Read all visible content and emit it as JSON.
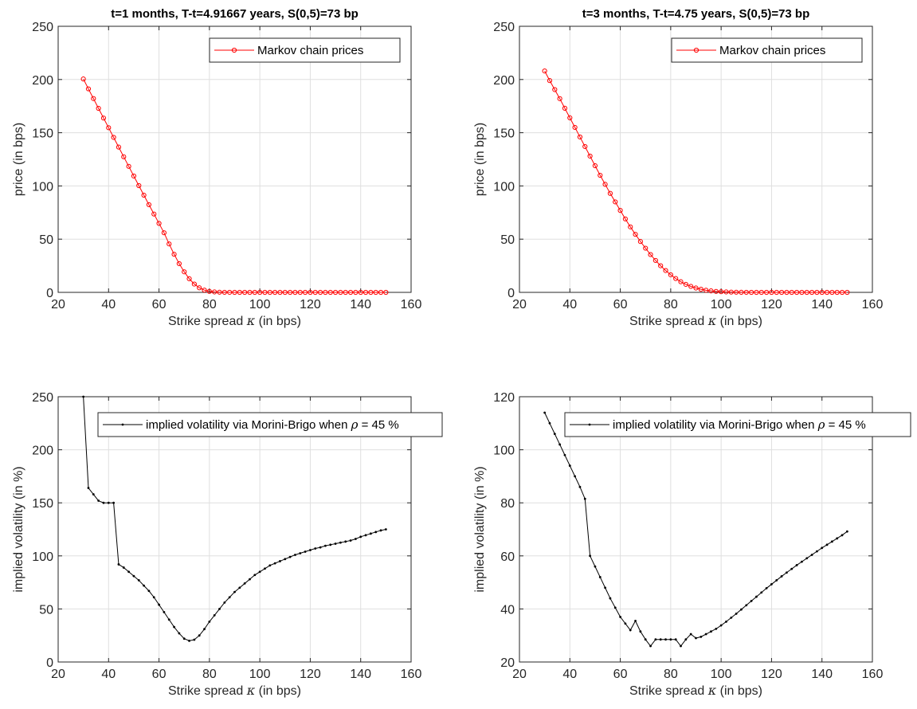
{
  "chart_data": [
    {
      "type": "line",
      "title": "t=1 months, T-t=4.91667 years, S(0,5)=73 bp",
      "xlabel": "Strike spread κ (in bps)",
      "ylabel": "price (in bps)",
      "xlim": [
        20,
        160
      ],
      "ylim": [
        0,
        250
      ],
      "xticks": [
        20,
        40,
        60,
        80,
        100,
        120,
        140,
        160
      ],
      "yticks": [
        0,
        50,
        100,
        150,
        200,
        250
      ],
      "grid": true,
      "legend_position": "top-right",
      "series": [
        {
          "name": "Markov chain prices",
          "color": "#ff0000",
          "marker": "circle",
          "x": [
            30,
            32,
            34,
            36,
            38,
            40,
            42,
            44,
            46,
            48,
            50,
            52,
            54,
            56,
            58,
            60,
            62,
            64,
            66,
            68,
            70,
            72,
            74,
            76,
            78,
            80,
            82,
            84,
            86,
            88,
            90,
            92,
            94,
            96,
            98,
            100,
            102,
            104,
            106,
            108,
            110,
            112,
            114,
            116,
            118,
            120,
            122,
            124,
            126,
            128,
            130,
            132,
            134,
            136,
            138,
            140,
            142,
            144,
            146,
            148,
            150
          ],
          "y": [
            200.5,
            191.2,
            182.1,
            172.9,
            163.8,
            154.7,
            145.6,
            136.5,
            127.4,
            118.4,
            109.3,
            100.3,
            91.3,
            82.4,
            73.6,
            64.8,
            56.0,
            45.5,
            35.8,
            27.0,
            19.3,
            12.8,
            7.8,
            4.3,
            2.1,
            0.9,
            0.4,
            0.15,
            0.05,
            0.02,
            0,
            0,
            0,
            0,
            0,
            0,
            0,
            0,
            0,
            0,
            0,
            0,
            0,
            0,
            0,
            0,
            0,
            0,
            0,
            0,
            0,
            0,
            0,
            0,
            0,
            0,
            0,
            0,
            0,
            0,
            0
          ]
        }
      ]
    },
    {
      "type": "line",
      "title": "t=3 months, T-t=4.75 years, S(0,5)=73 bp",
      "xlabel": "Strike spread κ (in bps)",
      "ylabel": "price (in bps)",
      "xlim": [
        20,
        160
      ],
      "ylim": [
        0,
        250
      ],
      "xticks": [
        20,
        40,
        60,
        80,
        100,
        120,
        140,
        160
      ],
      "yticks": [
        0,
        50,
        100,
        150,
        200,
        250
      ],
      "grid": true,
      "legend_position": "top-right",
      "series": [
        {
          "name": "Markov chain prices",
          "color": "#ff0000",
          "marker": "circle",
          "x": [
            30,
            32,
            34,
            36,
            38,
            40,
            42,
            44,
            46,
            48,
            50,
            52,
            54,
            56,
            58,
            60,
            62,
            64,
            66,
            68,
            70,
            72,
            74,
            76,
            78,
            80,
            82,
            84,
            86,
            88,
            90,
            92,
            94,
            96,
            98,
            100,
            102,
            104,
            106,
            108,
            110,
            112,
            114,
            116,
            118,
            120,
            122,
            124,
            126,
            128,
            130,
            132,
            134,
            136,
            138,
            140,
            142,
            144,
            146,
            148,
            150
          ],
          "y": [
            208,
            199,
            190.5,
            182,
            173,
            164,
            155,
            146,
            137,
            128,
            119,
            110,
            101.5,
            93,
            85,
            77,
            69,
            61.5,
            54.5,
            47.8,
            41.5,
            35.5,
            30,
            25,
            20.5,
            16.5,
            13,
            10,
            7.5,
            5.6,
            4.1,
            2.9,
            2.0,
            1.4,
            0.9,
            0.6,
            0.4,
            0.25,
            0.15,
            0.08,
            0.05,
            0,
            0,
            0,
            0,
            0,
            0,
            0,
            0,
            0,
            0,
            0,
            0,
            0,
            0,
            0,
            0,
            0,
            0,
            0,
            0
          ]
        }
      ]
    },
    {
      "type": "line",
      "title": "",
      "xlabel": "Strike spread κ (in bps)",
      "ylabel": "implied volatility (in %)",
      "xlim": [
        20,
        160
      ],
      "ylim": [
        0,
        250
      ],
      "xticks": [
        20,
        40,
        60,
        80,
        100,
        120,
        140,
        160
      ],
      "yticks": [
        0,
        50,
        100,
        150,
        200,
        250
      ],
      "grid": true,
      "legend_position": "top",
      "series": [
        {
          "name": "implied volatility via Morini-Brigo when ρ = 45 %",
          "color": "#000000",
          "marker": "dot",
          "x": [
            30,
            32,
            34,
            36,
            38,
            40,
            42,
            44,
            46,
            48,
            50,
            52,
            54,
            56,
            58,
            60,
            62,
            64,
            66,
            68,
            70,
            72,
            74,
            76,
            78,
            80,
            82,
            84,
            86,
            88,
            90,
            92,
            94,
            96,
            98,
            100,
            102,
            104,
            106,
            108,
            110,
            112,
            114,
            116,
            118,
            120,
            122,
            124,
            126,
            128,
            130,
            132,
            134,
            136,
            138,
            140,
            142,
            144,
            146,
            148,
            150
          ],
          "y": [
            250,
            164,
            158,
            152,
            150,
            150,
            150,
            92,
            89,
            85,
            81,
            77,
            72,
            67,
            61,
            54,
            47,
            40,
            33,
            27,
            22,
            20,
            21,
            25,
            31,
            38,
            44,
            50,
            56,
            61,
            66,
            70,
            74,
            78,
            82,
            85,
            88,
            91,
            93,
            95,
            97,
            99,
            101,
            102.5,
            104,
            105.5,
            107,
            108,
            109.5,
            110.5,
            111.5,
            112.5,
            113.5,
            114.5,
            116,
            118,
            119.5,
            121,
            122.5,
            124,
            125
          ]
        }
      ]
    },
    {
      "type": "line",
      "title": "",
      "xlabel": "Strike spread κ (in bps)",
      "ylabel": "implied volatility (in %)",
      "xlim": [
        20,
        160
      ],
      "ylim": [
        20,
        120
      ],
      "xticks": [
        20,
        40,
        60,
        80,
        100,
        120,
        140,
        160
      ],
      "yticks": [
        20,
        40,
        60,
        80,
        100,
        120
      ],
      "grid": true,
      "legend_position": "top",
      "series": [
        {
          "name": "implied volatility via Morini-Brigo when ρ = 45 %",
          "color": "#000000",
          "marker": "dot",
          "x": [
            30,
            32,
            34,
            36,
            38,
            40,
            42,
            44,
            46,
            48,
            50,
            52,
            54,
            56,
            58,
            60,
            62,
            64,
            66,
            68,
            70,
            72,
            74,
            76,
            78,
            80,
            82,
            84,
            86,
            88,
            90,
            92,
            94,
            96,
            98,
            100,
            102,
            104,
            106,
            108,
            110,
            112,
            114,
            116,
            118,
            120,
            122,
            124,
            126,
            128,
            130,
            132,
            134,
            136,
            138,
            140,
            142,
            144,
            146,
            148,
            150
          ],
          "y": [
            114,
            110,
            106,
            102,
            98,
            94,
            90,
            86,
            81.5,
            60,
            56,
            52,
            48,
            44,
            40.5,
            37,
            34.5,
            32,
            35.5,
            31.5,
            28.5,
            26,
            28.5,
            28.5,
            28.5,
            28.5,
            28.5,
            26,
            28.5,
            30.5,
            29,
            29.5,
            30.5,
            31.5,
            32.5,
            33.8,
            35.2,
            36.7,
            38.2,
            39.8,
            41.4,
            43,
            44.6,
            46.2,
            47.8,
            49.3,
            50.8,
            52.3,
            53.7,
            55.1,
            56.5,
            57.8,
            59.1,
            60.4,
            61.7,
            63,
            64.2,
            65.4,
            66.6,
            67.8,
            69.2
          ]
        }
      ]
    }
  ]
}
